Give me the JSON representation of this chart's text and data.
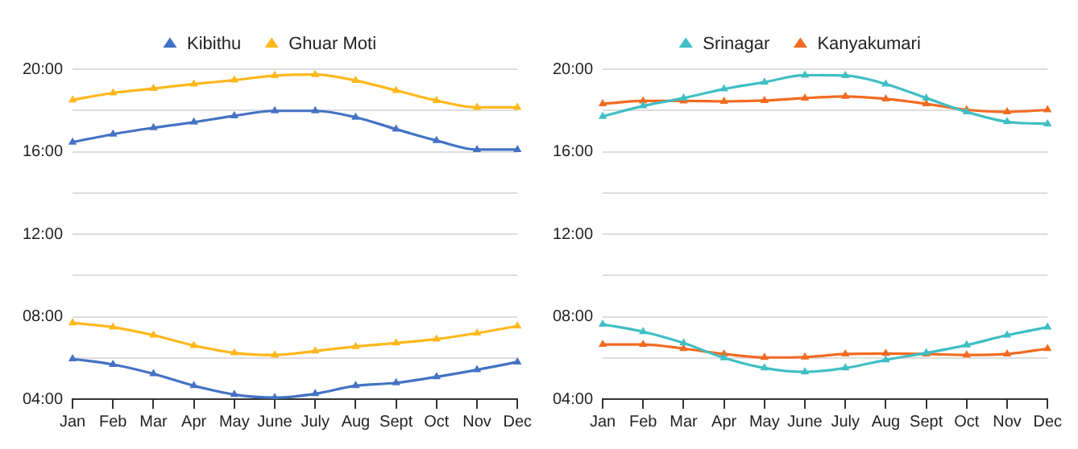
{
  "chart_data": [
    {
      "type": "line",
      "categories": [
        "Jan",
        "Feb",
        "Mar",
        "Apr",
        "May",
        "June",
        "July",
        "Aug",
        "Sept",
        "Oct",
        "Nov",
        "Dec"
      ],
      "series": [
        {
          "name": "Kibithu",
          "color": "#4472c4",
          "values": [
            16.46,
            16.85,
            17.16,
            17.43,
            17.74,
            17.98,
            17.98,
            17.67,
            17.09,
            16.54,
            16.1,
            16.1
          ]
        },
        {
          "color": "#4472c4",
          "values": [
            5.95,
            5.68,
            5.23,
            4.65,
            4.22,
            4.07,
            4.26,
            4.65,
            4.79,
            5.08,
            5.42,
            5.8
          ]
        },
        {
          "name": "Ghuar Moti",
          "color": "#ffb81c",
          "values": [
            18.51,
            18.85,
            19.06,
            19.28,
            19.47,
            19.69,
            19.74,
            19.45,
            18.97,
            18.48,
            18.15,
            18.15
          ]
        },
        {
          "color": "#ffb81c",
          "values": [
            7.7,
            7.49,
            7.1,
            6.6,
            6.24,
            6.14,
            6.33,
            6.55,
            6.72,
            6.91,
            7.2,
            7.54
          ]
        }
      ],
      "ylim": [
        4,
        20
      ],
      "yticks": [
        {
          "value": 4,
          "label": "04:00"
        },
        {
          "value": 6,
          "label": null
        },
        {
          "value": 8,
          "label": "08:00"
        },
        {
          "value": 10,
          "label": null
        },
        {
          "value": 12,
          "label": "12:00"
        },
        {
          "value": 14,
          "label": null
        },
        {
          "value": 16,
          "label": "16:00"
        },
        {
          "value": 18,
          "label": null
        },
        {
          "value": 20,
          "label": "20:00"
        }
      ],
      "grid": "y",
      "legend": "top",
      "marker": "triangle",
      "line_style": "solid"
    },
    {
      "type": "line",
      "categories": [
        "Jan",
        "Feb",
        "Mar",
        "Apr",
        "May",
        "June",
        "July",
        "Aug",
        "Sept",
        "Oct",
        "Nov",
        "Dec"
      ],
      "series": [
        {
          "name": "Srinagar",
          "color": "#3fbfc4",
          "values": [
            17.71,
            18.22,
            18.6,
            19.04,
            19.37,
            19.71,
            19.69,
            19.28,
            18.6,
            17.93,
            17.45,
            17.35
          ]
        },
        {
          "color": "#3fbfc4",
          "values": [
            7.63,
            7.27,
            6.72,
            6.0,
            5.51,
            5.32,
            5.51,
            5.9,
            6.24,
            6.62,
            7.1,
            7.49
          ]
        },
        {
          "name": "Kanyakumari",
          "color": "#f26b21",
          "values": [
            18.32,
            18.46,
            18.46,
            18.44,
            18.48,
            18.6,
            18.68,
            18.56,
            18.32,
            18.03,
            17.93,
            18.03
          ]
        },
        {
          "color": "#f26b21",
          "values": [
            6.65,
            6.65,
            6.45,
            6.19,
            6.02,
            6.04,
            6.19,
            6.21,
            6.19,
            6.14,
            6.19,
            6.45
          ]
        }
      ],
      "ylim": [
        4,
        20
      ],
      "yticks": [
        {
          "value": 4,
          "label": "04:00"
        },
        {
          "value": 6,
          "label": null
        },
        {
          "value": 8,
          "label": "08:00"
        },
        {
          "value": 10,
          "label": null
        },
        {
          "value": 12,
          "label": "12:00"
        },
        {
          "value": 14,
          "label": null
        },
        {
          "value": 16,
          "label": "16:00"
        },
        {
          "value": 18,
          "label": null
        },
        {
          "value": 20,
          "label": "20:00"
        }
      ],
      "grid": "y",
      "legend": "top",
      "marker": "triangle",
      "line_style": "solid"
    }
  ]
}
